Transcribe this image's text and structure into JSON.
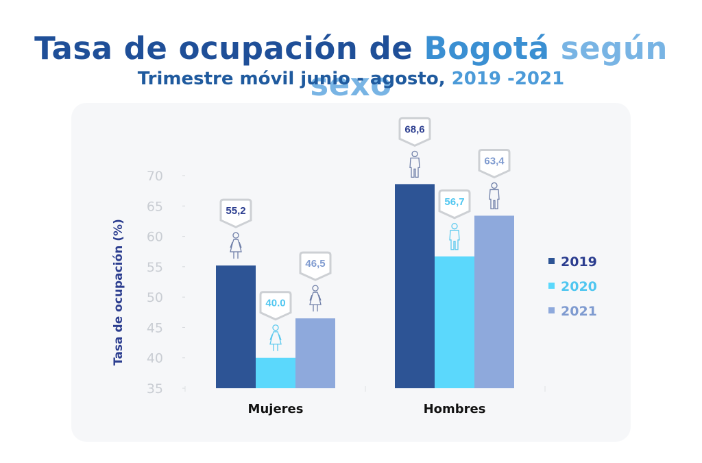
{
  "header": {
    "title_part1": "Tasa de ocupación de ",
    "title_part2": "Bogotá ",
    "title_part3": "según sexo",
    "subtitle_part1": "Trimestre móvil junio - agosto, ",
    "subtitle_part2": "2019 -2021"
  },
  "chart_data": {
    "type": "bar",
    "title": "Tasa de ocupación de Bogotá según sexo",
    "subtitle": "Trimestre móvil junio - agosto, 2019 -2021",
    "xlabel": "",
    "ylabel": "Tasa de ocupación (%)",
    "ylim": [
      35,
      70
    ],
    "yticks": [
      70,
      65,
      60,
      55,
      50,
      45,
      40,
      35
    ],
    "grid": false,
    "legend_position": "right",
    "categories": [
      "Mujeres",
      "Hombres"
    ],
    "category_icons": [
      "woman-icon",
      "man-icon"
    ],
    "series": [
      {
        "name": "2019",
        "color": "#2d5495",
        "values": [
          55.2,
          68.6
        ],
        "labels": [
          "55,2",
          "68,6"
        ],
        "label_color": "#2b3d8f"
      },
      {
        "name": "2020",
        "color": "#5bd8fc",
        "values": [
          40.0,
          56.7
        ],
        "labels": [
          "40.0",
          "56,7"
        ],
        "label_color": "#4fc6f0"
      },
      {
        "name": "2021",
        "color": "#8ea9dc",
        "values": [
          46.5,
          63.4
        ],
        "labels": [
          "46,5",
          "63,4"
        ],
        "label_color": "#7f9bd0"
      }
    ]
  }
}
